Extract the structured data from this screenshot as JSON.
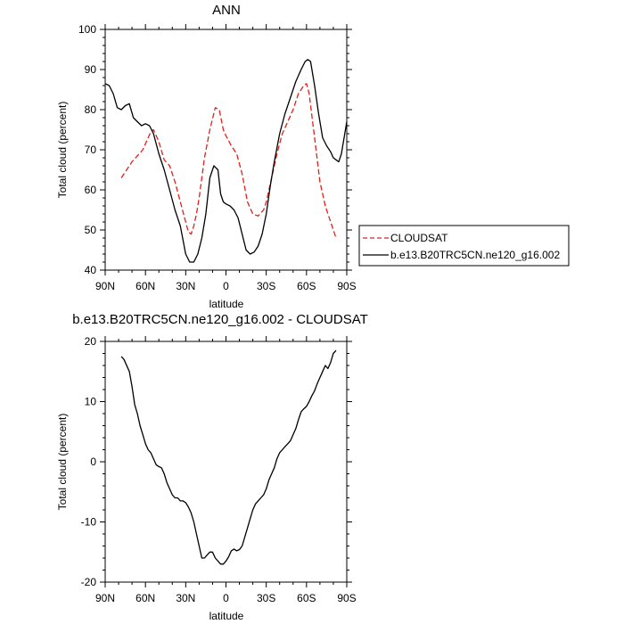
{
  "chart_data": [
    {
      "type": "line",
      "title": "ANN",
      "xlabel": "latitude",
      "ylabel": "Total cloud (percent)",
      "xlim": [
        90,
        -90
      ],
      "ylim": [
        40,
        100
      ],
      "x_ticks": [
        {
          "value": 90,
          "label": "90N"
        },
        {
          "value": 60,
          "label": "60N"
        },
        {
          "value": 30,
          "label": "30N"
        },
        {
          "value": 0,
          "label": "0"
        },
        {
          "value": -30,
          "label": "30S"
        },
        {
          "value": -60,
          "label": "60S"
        },
        {
          "value": -90,
          "label": "90S"
        }
      ],
      "y_ticks": [
        40,
        50,
        60,
        70,
        80,
        90,
        100
      ],
      "legend_position": "outside-right",
      "series": [
        {
          "name": "CLOUDSAT",
          "color": "#e0201a",
          "dash": "dashed",
          "x": [
            78,
            74,
            70,
            66,
            62,
            58,
            56,
            54,
            50,
            46,
            42,
            38,
            34,
            30,
            28,
            26,
            24,
            22,
            20,
            16,
            12,
            8,
            5,
            2,
            0,
            -4,
            -8,
            -12,
            -16,
            -20,
            -24,
            -28,
            -30,
            -34,
            -38,
            -42,
            -46,
            -50,
            -54,
            -58,
            -60,
            -62,
            -66,
            -70,
            -74,
            -78,
            -82
          ],
          "y": [
            63,
            65,
            67,
            68.5,
            70,
            73,
            74.5,
            75,
            72,
            67.5,
            66,
            62,
            57,
            52,
            49.5,
            49,
            51,
            54,
            58,
            68,
            75,
            80.5,
            80,
            75,
            73.5,
            71,
            69,
            64,
            57,
            54,
            53.5,
            55,
            57,
            63,
            69,
            74,
            77,
            80,
            84,
            86,
            86.5,
            84,
            73,
            62,
            56,
            52,
            48
          ]
        },
        {
          "name": "b.e13.B20TRC5CN.ne120_g16.002",
          "color": "#000000",
          "dash": "solid",
          "x": [
            90,
            87,
            84,
            81,
            78,
            75,
            72,
            69,
            66,
            63,
            60,
            57,
            54,
            50,
            46,
            42,
            38,
            34,
            30,
            27,
            24,
            21,
            18,
            15,
            12,
            9,
            6,
            4,
            2,
            0,
            -3,
            -6,
            -9,
            -12,
            -15,
            -18,
            -21,
            -24,
            -27,
            -30,
            -33,
            -36,
            -40,
            -44,
            -48,
            -52,
            -56,
            -59,
            -61,
            -63,
            -66,
            -69,
            -72,
            -75,
            -78,
            -80,
            -82,
            -84,
            -86,
            -90
          ],
          "y": [
            86.5,
            86,
            84,
            80.5,
            80,
            81,
            81.5,
            78,
            77,
            76,
            76.5,
            76,
            74,
            69,
            65,
            60,
            55,
            51,
            44,
            42,
            42,
            44,
            48,
            54,
            63,
            66,
            65,
            59,
            57,
            56.5,
            56,
            55,
            53,
            49,
            45,
            44,
            44.5,
            46,
            49,
            54,
            61,
            67,
            74,
            79,
            83,
            87,
            90,
            92,
            92.5,
            92,
            86,
            79,
            73,
            71,
            69.5,
            68,
            67.5,
            67,
            69,
            77
          ]
        }
      ]
    },
    {
      "type": "line",
      "title": "b.e13.B20TRC5CN.ne120_g16.002 - CLOUDSAT",
      "xlabel": "latitude",
      "ylabel": "Total cloud (percent)",
      "xlim": [
        90,
        -90
      ],
      "ylim": [
        -20,
        20
      ],
      "x_ticks": [
        {
          "value": 90,
          "label": "90N"
        },
        {
          "value": 60,
          "label": "60N"
        },
        {
          "value": 30,
          "label": "30N"
        },
        {
          "value": 0,
          "label": "0"
        },
        {
          "value": -30,
          "label": "30S"
        },
        {
          "value": -60,
          "label": "60S"
        },
        {
          "value": -90,
          "label": "90S"
        }
      ],
      "y_ticks": [
        -20,
        -10,
        0,
        10,
        20
      ],
      "series": [
        {
          "color": "#000000",
          "dash": "solid",
          "x": [
            78,
            76,
            72,
            70,
            68,
            66,
            64,
            62,
            60,
            58,
            56,
            54,
            52,
            50,
            48,
            46,
            44,
            42,
            40,
            38,
            36,
            34,
            32,
            30,
            28,
            26,
            24,
            22,
            20,
            18,
            16,
            14,
            12,
            10,
            8,
            6,
            4,
            2,
            0,
            -2,
            -4,
            -6,
            -8,
            -10,
            -12,
            -14,
            -16,
            -18,
            -20,
            -22,
            -24,
            -26,
            -28,
            -30,
            -32,
            -34,
            -36,
            -38,
            -40,
            -42,
            -44,
            -46,
            -48,
            -50,
            -52,
            -54,
            -56,
            -58,
            -60,
            -62,
            -64,
            -66,
            -68,
            -70,
            -72,
            -74,
            -76,
            -78,
            -80,
            -82
          ],
          "y": [
            17.5,
            17,
            15,
            12.5,
            9.5,
            8,
            6,
            4.5,
            3,
            2,
            1.5,
            0.5,
            -0.5,
            -0.8,
            -1,
            -2,
            -3.5,
            -4.5,
            -5.5,
            -6,
            -6,
            -6.5,
            -6.5,
            -6.8,
            -7.5,
            -8.5,
            -10,
            -12,
            -14,
            -16,
            -16,
            -15.5,
            -15,
            -15,
            -16,
            -16.5,
            -17,
            -17,
            -16.5,
            -15.8,
            -14.8,
            -14.5,
            -14.8,
            -14.6,
            -14,
            -12.5,
            -11,
            -9.5,
            -8,
            -7,
            -6.5,
            -6,
            -5.5,
            -4.5,
            -3,
            -2,
            -1,
            0.5,
            1.5,
            2,
            2.5,
            3,
            3.5,
            4.5,
            5.5,
            7,
            8.3,
            8.8,
            9.2,
            10,
            11,
            11.8,
            13,
            14,
            15,
            16,
            15.5,
            16.5,
            18,
            18.5
          ]
        }
      ]
    }
  ]
}
